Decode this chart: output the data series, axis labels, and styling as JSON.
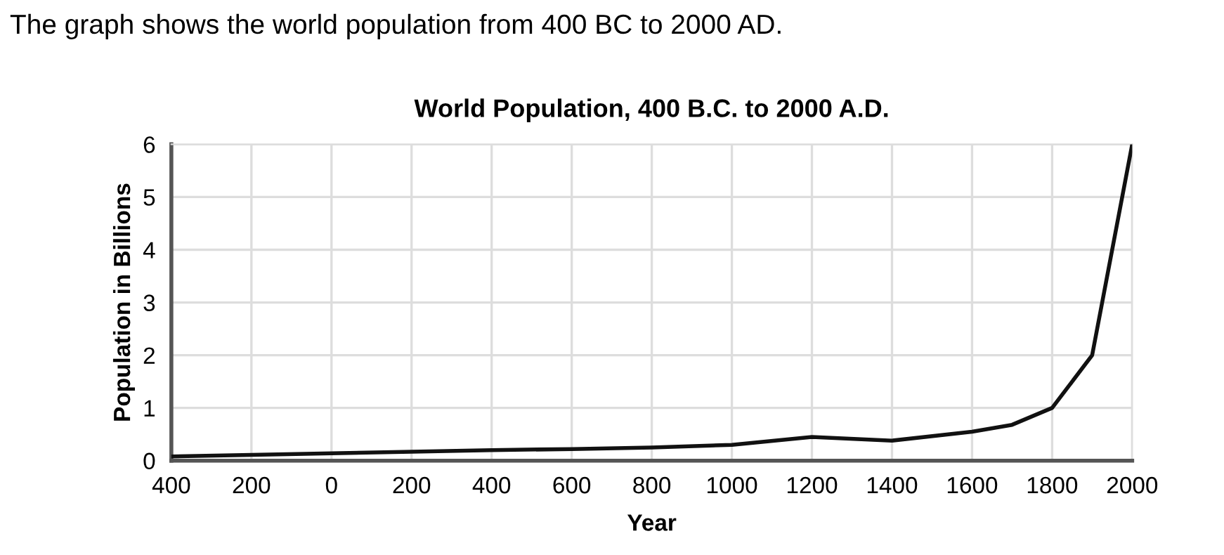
{
  "chart_data": {
    "type": "line",
    "title": "World Population, 400 B.C. to 2000 A.D.",
    "xlabel": "Year",
    "ylabel": "Population in Billions",
    "annotations": [
      "The graph shows the world population from 400 BC to 2000 AD."
    ],
    "x": [
      -400,
      -200,
      0,
      200,
      400,
      600,
      800,
      1000,
      1200,
      1400,
      1600,
      1700,
      1800,
      1900,
      2000
    ],
    "series": [
      {
        "color": "#111111",
        "values": [
          0.08,
          0.11,
          0.14,
          0.17,
          0.2,
          0.22,
          0.25,
          0.3,
          0.45,
          0.38,
          0.55,
          0.68,
          1.0,
          2.0,
          6.0
        ]
      }
    ],
    "xlim": [
      -400,
      2000
    ],
    "ylim": [
      0,
      6
    ],
    "xticks": [
      {
        "value": -400,
        "label": "400"
      },
      {
        "value": -200,
        "label": "200"
      },
      0,
      200,
      400,
      600,
      800,
      1000,
      1200,
      1400,
      1600,
      1800,
      2000
    ],
    "yticks": [
      0,
      1,
      2,
      3,
      4,
      5,
      6
    ],
    "grid": true,
    "marker": "none",
    "line_style": "solid"
  }
}
